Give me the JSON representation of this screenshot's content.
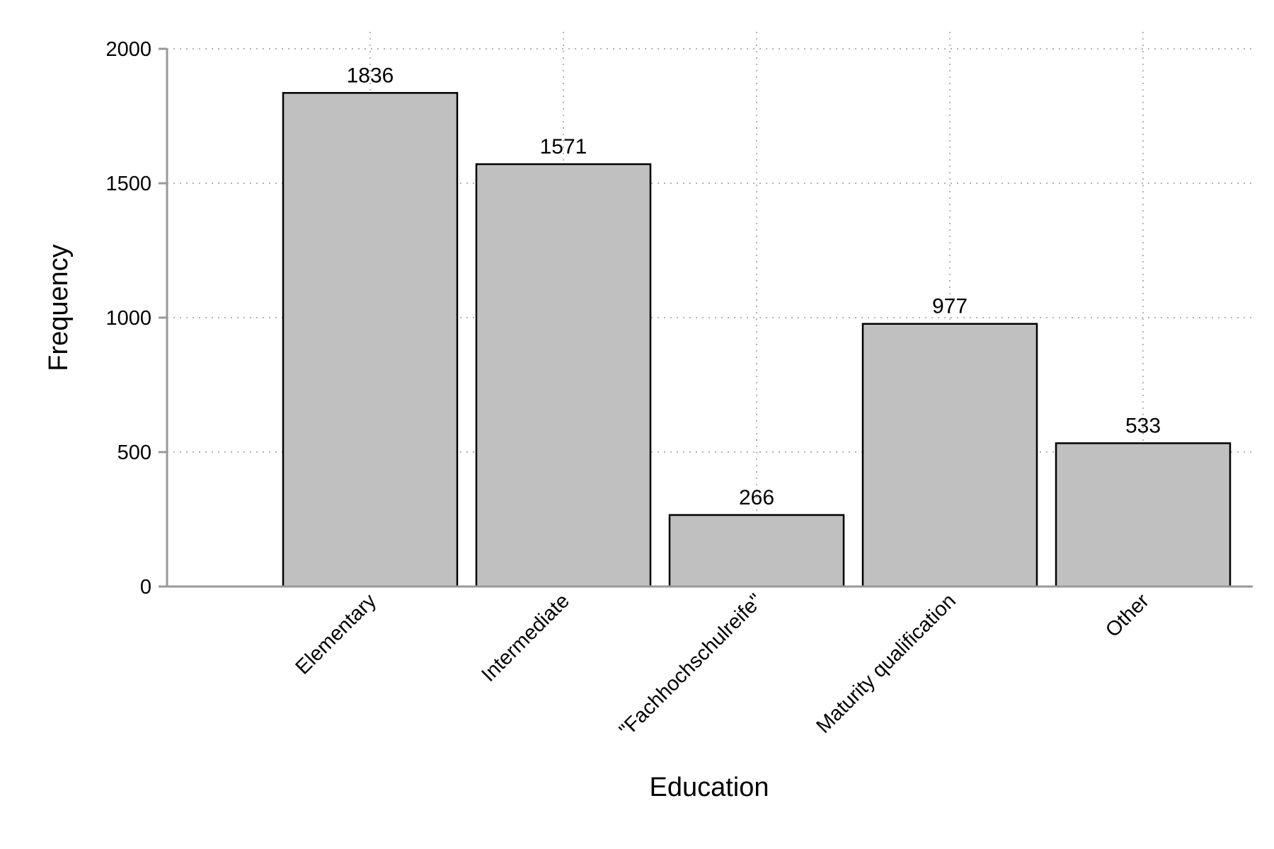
{
  "chart_data": {
    "type": "bar",
    "title": "",
    "xlabel": "Education",
    "ylabel": "Frequency",
    "categories": [
      "Elementary",
      "Intermediate",
      "\"Fachhochschulreife\"",
      "Maturity qualification",
      "Other"
    ],
    "values": [
      1836,
      1571,
      266,
      977,
      533
    ],
    "data_labels": [
      "1836",
      "1571",
      "266",
      "977",
      "533"
    ],
    "ylim": [
      0,
      2000
    ],
    "yticks": [
      0,
      500,
      1000,
      1500,
      2000
    ],
    "ytick_labels": [
      "0",
      "500",
      "1000",
      "1500",
      "2000"
    ],
    "grid": true,
    "legend": false,
    "colors": {
      "bar_fill": "#c0c0c0",
      "bar_stroke": "#000000",
      "axis": "#999999",
      "grid": "#b3b3b3"
    }
  }
}
